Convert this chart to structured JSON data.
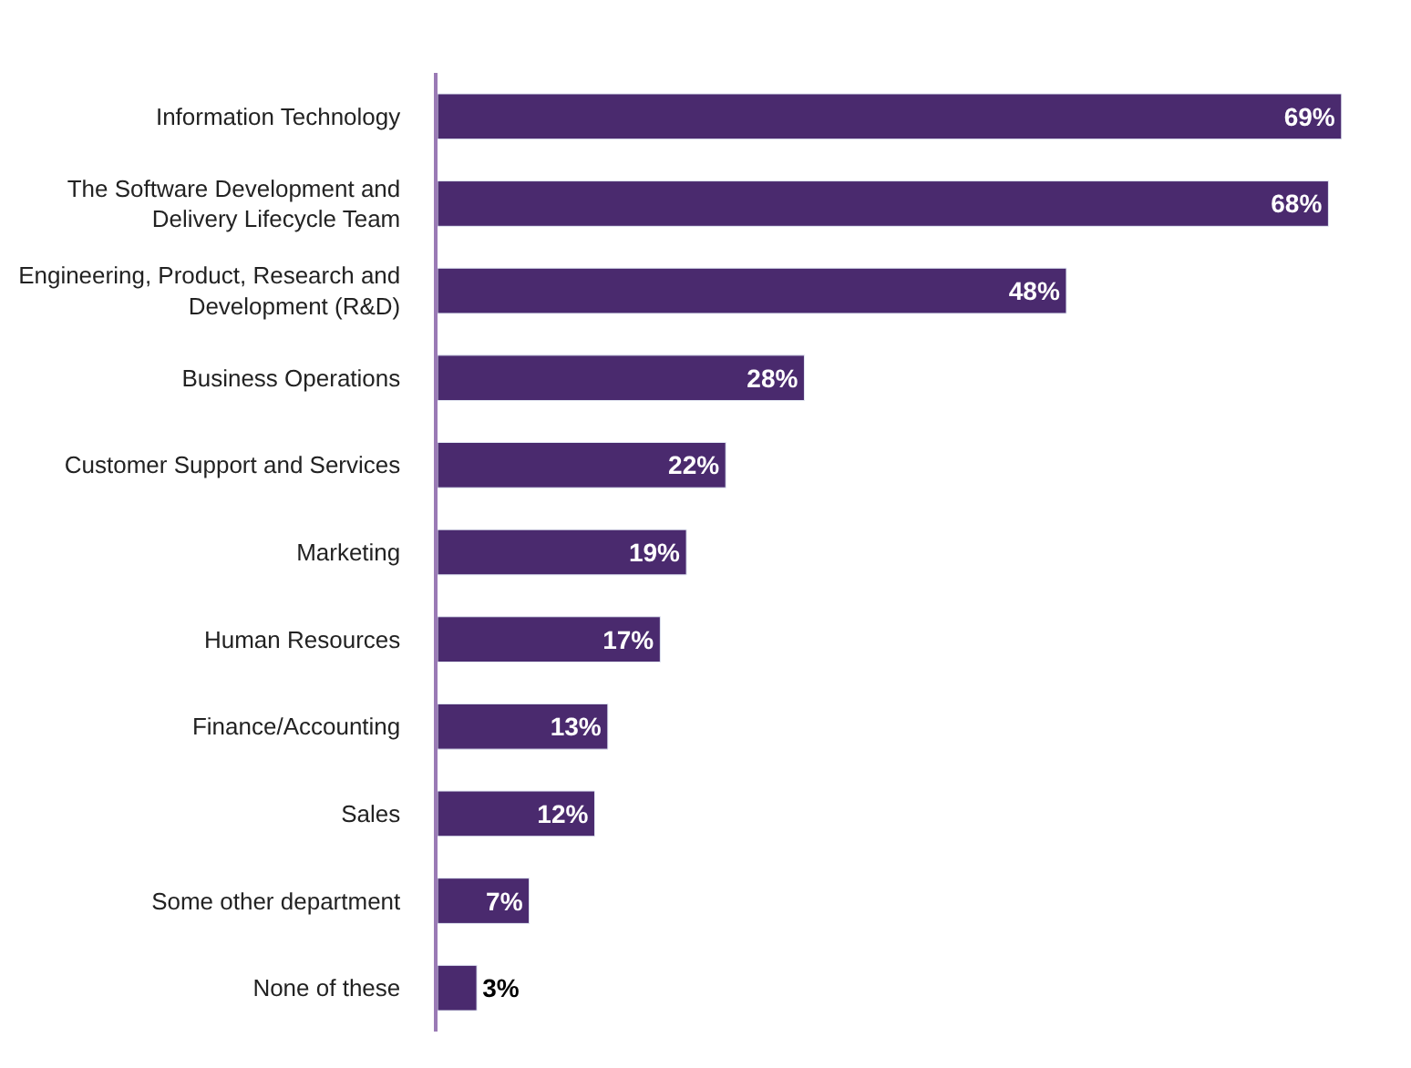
{
  "chart_data": {
    "type": "bar",
    "orientation": "horizontal",
    "categories": [
      "Information Technology",
      "The Software Development and\nDelivery Lifecycle Team",
      "Engineering, Product, Research and\nDevelopment (R&D)",
      "Business Operations",
      "Customer Support and Services",
      "Marketing",
      "Human Resources",
      "Finance/Accounting",
      "Sales",
      "Some other department",
      "None of these"
    ],
    "values": [
      69,
      68,
      48,
      28,
      22,
      19,
      17,
      13,
      12,
      7,
      3
    ],
    "value_labels": [
      "69%",
      "68%",
      "48%",
      "28%",
      "22%",
      "19%",
      "17%",
      "13%",
      "12%",
      "7%",
      "3%"
    ],
    "color": "#4a2a6e"
  }
}
